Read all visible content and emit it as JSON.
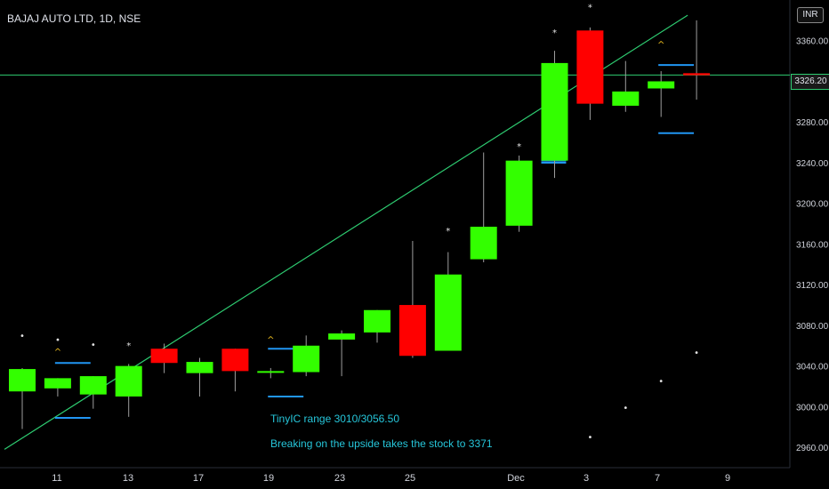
{
  "header": {
    "title": "BAJAJ AUTO LTD, 1D, NSE",
    "currency": "INR"
  },
  "annotations": [
    {
      "text": "TinyIC range 3010/3056.50"
    },
    {
      "text": "Breaking on the upside takes the stock to 3371"
    }
  ],
  "colors": {
    "up": "#33ff00",
    "down": "#ff0000",
    "trend": "#2ecc71",
    "box": "#2196f3",
    "note": "#26c6da",
    "caret": "#f0c020"
  },
  "chart_data": {
    "type": "candlestick",
    "title": "BAJAJ AUTO LTD, 1D, NSE",
    "ylim": [
      2940,
      3400
    ],
    "y_ticks": [
      2960,
      3000,
      3040,
      3080,
      3120,
      3160,
      3200,
      3240,
      3280,
      3320,
      3360
    ],
    "x_labels": [
      "11",
      "13",
      "17",
      "19",
      "23",
      "25",
      "Dec",
      "3",
      "7",
      "9"
    ],
    "last_price": "3326.20",
    "candles": [
      {
        "o": 3015,
        "h": 3038,
        "l": 2978,
        "c": 3037
      },
      {
        "o": 3018,
        "h": 3028,
        "l": 3010,
        "c": 3028
      },
      {
        "o": 3012,
        "h": 3030,
        "l": 2998,
        "c": 3030
      },
      {
        "o": 3010,
        "h": 3042,
        "l": 2990,
        "c": 3040
      },
      {
        "o": 3057,
        "h": 3062,
        "l": 3033,
        "c": 3043
      },
      {
        "o": 3033,
        "h": 3048,
        "l": 3010,
        "c": 3044
      },
      {
        "o": 3057,
        "h": 3057,
        "l": 3015,
        "c": 3035
      },
      {
        "o": 3034,
        "h": 3038,
        "l": 3028,
        "c": 3035
      },
      {
        "o": 3034,
        "h": 3070,
        "l": 3030,
        "c": 3060
      },
      {
        "o": 3066,
        "h": 3075,
        "l": 3030,
        "c": 3072
      },
      {
        "o": 3073,
        "h": 3095,
        "l": 3063,
        "c": 3095
      },
      {
        "o": 3100,
        "h": 3163,
        "l": 3048,
        "c": 3050
      },
      {
        "o": 3055,
        "h": 3152,
        "l": 3055,
        "c": 3130
      },
      {
        "o": 3145,
        "h": 3250,
        "l": 3142,
        "c": 3177
      },
      {
        "o": 3178,
        "h": 3247,
        "l": 3172,
        "c": 3242
      },
      {
        "o": 3242,
        "h": 3350,
        "l": 3225,
        "c": 3338
      },
      {
        "o": 3370,
        "h": 3373,
        "l": 3282,
        "c": 3298
      },
      {
        "o": 3296,
        "h": 3340,
        "l": 3290,
        "c": 3310
      },
      {
        "o": 3313,
        "h": 3330,
        "l": 3285,
        "c": 3320
      },
      {
        "o": 3328,
        "h": 3380,
        "l": 3302,
        "c": 3326
      }
    ],
    "trendline": {
      "from": {
        "bar": -0.5,
        "value": 2958
      },
      "to": {
        "bar": 18.75,
        "value": 3385
      }
    },
    "range_boxes": [
      {
        "from_bar": 1.3,
        "to_bar": 2.3,
        "top": 3043,
        "bottom": 2989
      },
      {
        "from_bar": 7.3,
        "to_bar": 8.3,
        "top": 3057,
        "bottom": 3010
      },
      {
        "from_bar": 15.0,
        "to_bar": 15.7,
        "top": 3242,
        "bottom": 3240
      },
      {
        "from_bar": 18.3,
        "to_bar": 19.3,
        "top": 3336,
        "bottom": 3269
      }
    ],
    "markers": [
      {
        "bar": 0,
        "value": 3067,
        "symbol": "•"
      },
      {
        "bar": 1,
        "value": 3063,
        "symbol": "•"
      },
      {
        "bar": 1,
        "value": 3051,
        "symbol": "^"
      },
      {
        "bar": 2,
        "value": 3058,
        "symbol": "•"
      },
      {
        "bar": 3,
        "value": 3057,
        "symbol": "*"
      },
      {
        "bar": 7,
        "value": 3063,
        "symbol": "^"
      },
      {
        "bar": 12,
        "value": 3170,
        "symbol": "*"
      },
      {
        "bar": 14,
        "value": 3253,
        "symbol": "*"
      },
      {
        "bar": 15,
        "value": 3365,
        "symbol": "*"
      },
      {
        "bar": 16,
        "value": 3390,
        "symbol": "*"
      },
      {
        "bar": 17,
        "value": 2996,
        "symbol": "•"
      },
      {
        "bar": 16,
        "value": 2967,
        "symbol": "•"
      },
      {
        "bar": 18,
        "value": 3022,
        "symbol": "•"
      },
      {
        "bar": 18,
        "value": 3353,
        "symbol": "^"
      },
      {
        "bar": 19,
        "value": 3050,
        "symbol": "•"
      },
      {
        "bar": 19,
        "value": 3397,
        "symbol": "^"
      }
    ]
  }
}
